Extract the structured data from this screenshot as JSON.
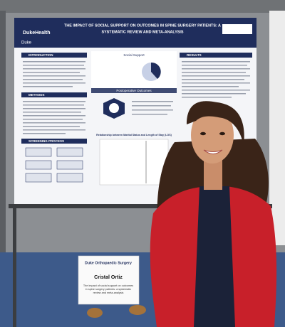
{
  "poster": {
    "title_lines": [
      "THE IMPACT OF SOCIAL SUPPORT ON OUTCOMES IN SPINE SURGERY PATIENTS: A",
      "SYSTEMATIC REVIEW AND META-ANALYSIS"
    ],
    "logo": "DukeHealth",
    "logo_small": "Duke",
    "sections": {
      "introduction": "INTRODUCTION",
      "methods": "METHODS",
      "screening": "SCREENING PROCESS",
      "results": "RESULTS"
    },
    "figures": {
      "social_support": "Social Support",
      "postoperative": "Postoperative Outcomes",
      "relationship": "Relationship between Marital Status and Length of Stay (LOS)"
    }
  },
  "sign": {
    "department": "Duke Orthopaedic Surgery",
    "name": "Cristal Ortiz",
    "description_lines": [
      "The impact of social support on outcomes",
      "in spine surgery patients: a systematic",
      "review and meta-analysis"
    ]
  }
}
